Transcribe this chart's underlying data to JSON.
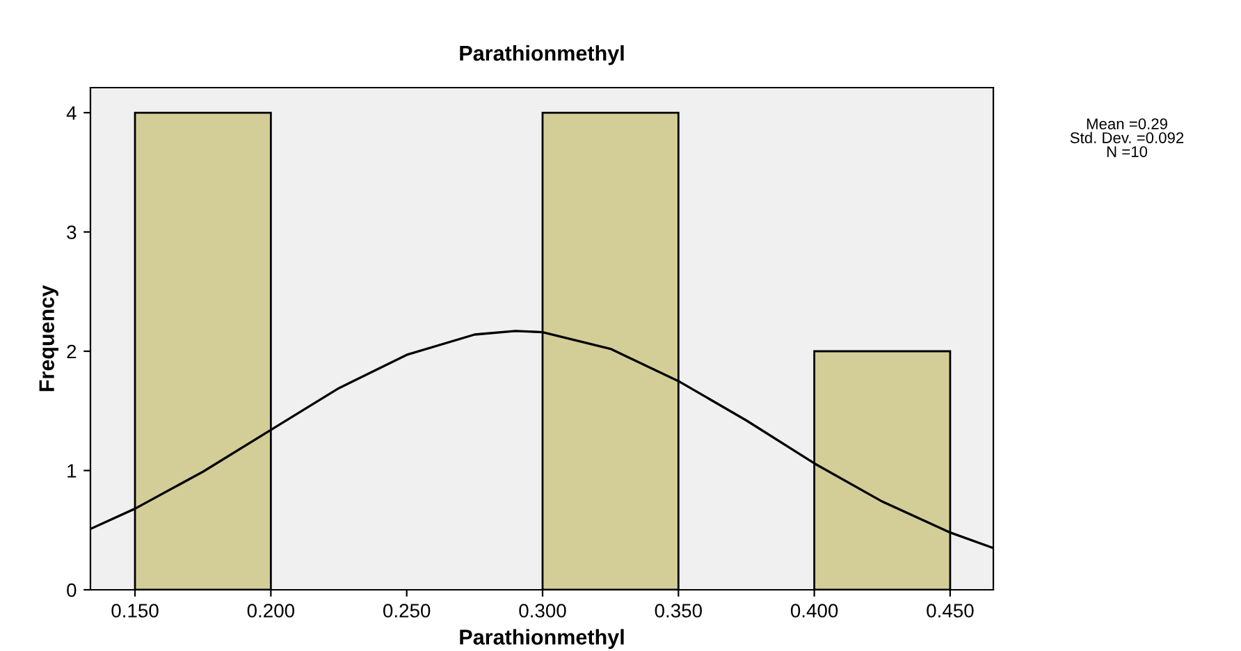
{
  "chart_data": {
    "type": "histogram",
    "title": "Parathionmethyl",
    "xlabel": "Parathionmethyl",
    "ylabel": "Frequency",
    "bins": [
      0.15,
      0.2,
      0.25,
      0.3,
      0.35,
      0.4,
      0.45
    ],
    "values": [
      4,
      0,
      0,
      4,
      0,
      2
    ],
    "color": "#d3ce97",
    "series": [
      {
        "type": "line",
        "color": "#000000",
        "x": [
          0.1336,
          0.15,
          0.175,
          0.2,
          0.225,
          0.25,
          0.275,
          0.29,
          0.3,
          0.325,
          0.35,
          0.375,
          0.4,
          0.425,
          0.45,
          0.4659
        ],
        "values": [
          0.51,
          0.68,
          0.99,
          1.34,
          1.69,
          1.97,
          2.14,
          2.17,
          2.16,
          2.02,
          1.75,
          1.42,
          1.06,
          0.74,
          0.48,
          0.35
        ]
      }
    ],
    "xlim": [
      0.1336,
      0.4659
    ],
    "ylim": [
      0,
      4.21
    ],
    "xticks": [
      {
        "value": 0.15,
        "label": "0.150"
      },
      {
        "value": 0.2,
        "label": "0.200"
      },
      {
        "value": 0.25,
        "label": "0.250"
      },
      {
        "value": 0.3,
        "label": "0.300"
      },
      {
        "value": 0.35,
        "label": "0.350"
      },
      {
        "value": 0.4,
        "label": "0.400"
      },
      {
        "value": 0.45,
        "label": "0.450"
      }
    ],
    "yticks": [
      0,
      1,
      2,
      3,
      4
    ],
    "grid": false,
    "legend": false,
    "annotations": [
      "Mean =0.29",
      "Std. Dev. =0.092",
      "N =10"
    ]
  }
}
